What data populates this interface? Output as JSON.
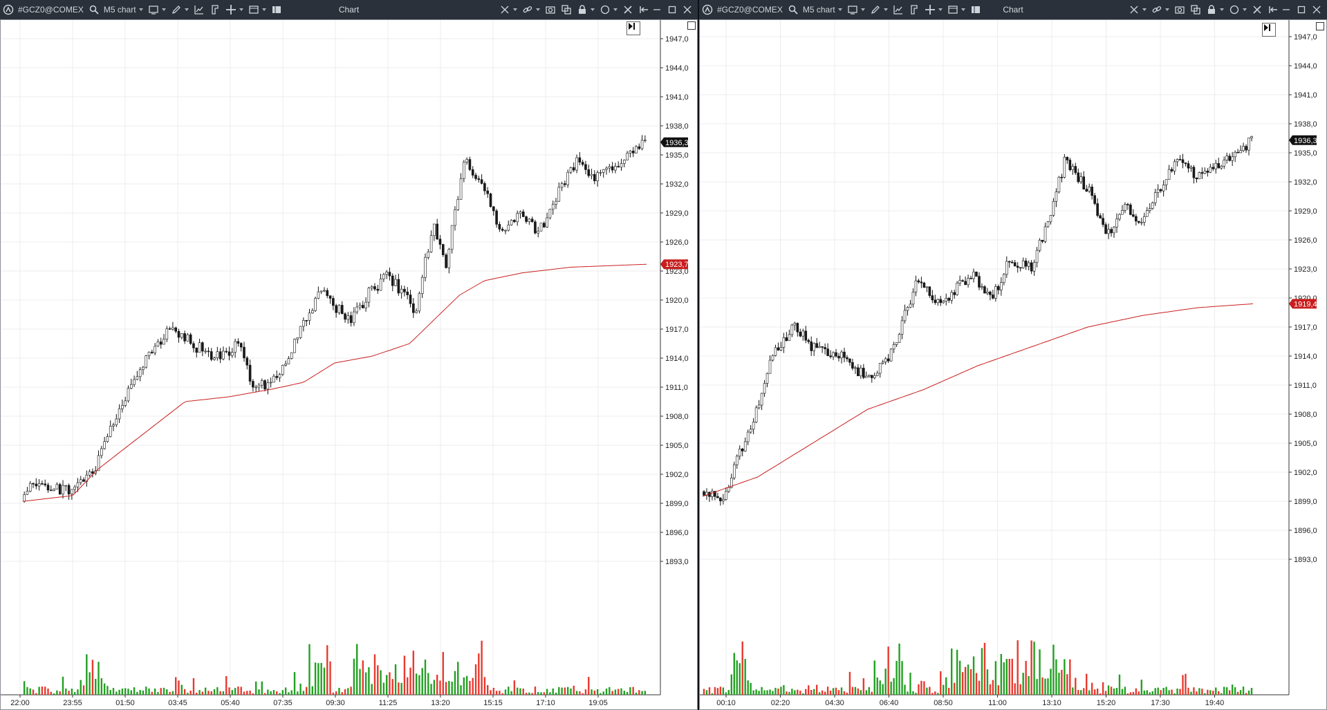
{
  "panels": [
    {
      "id": "left",
      "symbol": "#GCZ0@COMEX",
      "timeframe": "M5 chart",
      "title": "Chart",
      "price_labels": [
        "1947,0",
        "1944,0",
        "1941,0",
        "1938,0",
        "1935,0",
        "1932,0",
        "1929,0",
        "1926,0",
        "1923,0",
        "1920,0",
        "1917,0",
        "1914,0",
        "1911,0",
        "1908,0",
        "1905,0",
        "1902,0",
        "1899,0",
        "1896,0",
        "1893,0"
      ],
      "time_labels": [
        "22:00",
        "23:55",
        "01:50",
        "03:45",
        "05:40",
        "07:35",
        "09:30",
        "11:25",
        "13:20",
        "15:15",
        "17:10",
        "19:05"
      ],
      "last_price": "1936,3",
      "vwap_label": "1923,7"
    },
    {
      "id": "right",
      "symbol": "#GCZ0@COMEX",
      "timeframe": "M5 chart",
      "title": "Chart",
      "price_labels": [
        "1947,0",
        "1944,0",
        "1941,0",
        "1938,0",
        "1935,0",
        "1932,0",
        "1929,0",
        "1926,0",
        "1923,0",
        "1920,0",
        "1917,0",
        "1914,0",
        "1911,0",
        "1908,0",
        "1905,0",
        "1902,0",
        "1899,0",
        "1896,0",
        "1893,0"
      ],
      "time_labels": [
        "00:10",
        "02:20",
        "04:30",
        "06:40",
        "08:50",
        "11:00",
        "13:10",
        "15:20",
        "17:30",
        "19:40"
      ],
      "last_price": "1936,3",
      "vwap_label": "1919,4"
    }
  ],
  "chart_data": [
    {
      "type": "candlestick",
      "symbol": "#GCZ0@COMEX",
      "timeframe": "M5",
      "ylim": [
        1892,
        1948
      ],
      "x_ticks": [
        "22:00",
        "23:55",
        "01:50",
        "03:45",
        "05:40",
        "07:35",
        "09:30",
        "11:25",
        "13:20",
        "15:15",
        "17:10",
        "19:05"
      ],
      "close_path": [
        [
          0,
          1899.2
        ],
        [
          0.02,
          1901.0
        ],
        [
          0.05,
          1900.4
        ],
        [
          0.09,
          1900.5
        ],
        [
          0.12,
          1903.0
        ],
        [
          0.16,
          1909.0
        ],
        [
          0.21,
          1915.0
        ],
        [
          0.24,
          1917.2
        ],
        [
          0.28,
          1915.2
        ],
        [
          0.32,
          1914.0
        ],
        [
          0.35,
          1915.5
        ],
        [
          0.37,
          1911.5
        ],
        [
          0.4,
          1911.0
        ],
        [
          0.43,
          1914.5
        ],
        [
          0.46,
          1918.5
        ],
        [
          0.48,
          1921.5
        ],
        [
          0.5,
          1919.5
        ],
        [
          0.53,
          1918.0
        ],
        [
          0.56,
          1921.0
        ],
        [
          0.59,
          1922.5
        ],
        [
          0.62,
          1920.0
        ],
        [
          0.63,
          1918.0
        ],
        [
          0.66,
          1928.0
        ],
        [
          0.68,
          1923.5
        ],
        [
          0.71,
          1934.5
        ],
        [
          0.74,
          1932.0
        ],
        [
          0.77,
          1926.5
        ],
        [
          0.8,
          1929.0
        ],
        [
          0.83,
          1927.0
        ],
        [
          0.86,
          1931.0
        ],
        [
          0.89,
          1934.5
        ],
        [
          0.91,
          1932.5
        ],
        [
          0.95,
          1933.5
        ],
        [
          0.97,
          1935.0
        ],
        [
          1.0,
          1936.3
        ]
      ],
      "vwap_path": [
        [
          0,
          1899.2
        ],
        [
          0.08,
          1899.8
        ],
        [
          0.12,
          1902.5
        ],
        [
          0.2,
          1906.5
        ],
        [
          0.26,
          1909.5
        ],
        [
          0.33,
          1910.0
        ],
        [
          0.4,
          1910.8
        ],
        [
          0.45,
          1911.5
        ],
        [
          0.5,
          1913.5
        ],
        [
          0.56,
          1914.2
        ],
        [
          0.62,
          1915.5
        ],
        [
          0.66,
          1918.0
        ],
        [
          0.7,
          1920.5
        ],
        [
          0.74,
          1922.0
        ],
        [
          0.8,
          1922.8
        ],
        [
          0.88,
          1923.4
        ],
        [
          1.0,
          1923.7
        ]
      ],
      "volume_profile": "spikes around 01:50 and 13:20-15:15",
      "last_price": 1936.3,
      "vwap_last": 1923.7
    },
    {
      "type": "candlestick",
      "symbol": "#GCZ0@COMEX",
      "timeframe": "M5",
      "ylim": [
        1892,
        1948
      ],
      "x_ticks": [
        "00:10",
        "02:20",
        "04:30",
        "06:40",
        "08:50",
        "11:00",
        "13:10",
        "15:20",
        "17:30",
        "19:40"
      ],
      "close_path": [
        [
          0,
          1900.0
        ],
        [
          0.04,
          1899.5
        ],
        [
          0.06,
          1902.5
        ],
        [
          0.09,
          1906.5
        ],
        [
          0.13,
          1914.5
        ],
        [
          0.17,
          1917.0
        ],
        [
          0.21,
          1914.5
        ],
        [
          0.26,
          1914.2
        ],
        [
          0.3,
          1911.5
        ],
        [
          0.34,
          1913.5
        ],
        [
          0.39,
          1921.5
        ],
        [
          0.44,
          1919.5
        ],
        [
          0.49,
          1922.5
        ],
        [
          0.53,
          1920.0
        ],
        [
          0.56,
          1924.0
        ],
        [
          0.6,
          1923.0
        ],
        [
          0.63,
          1928.0
        ],
        [
          0.66,
          1934.0
        ],
        [
          0.7,
          1931.5
        ],
        [
          0.74,
          1926.5
        ],
        [
          0.77,
          1930.0
        ],
        [
          0.8,
          1927.5
        ],
        [
          0.83,
          1931.0
        ],
        [
          0.87,
          1934.5
        ],
        [
          0.9,
          1932.5
        ],
        [
          0.94,
          1933.5
        ],
        [
          0.97,
          1935.0
        ],
        [
          1.0,
          1936.3
        ]
      ],
      "vwap_path": [
        [
          0,
          1899.5
        ],
        [
          0.1,
          1901.5
        ],
        [
          0.2,
          1905.0
        ],
        [
          0.3,
          1908.5
        ],
        [
          0.4,
          1910.5
        ],
        [
          0.5,
          1913.0
        ],
        [
          0.6,
          1915.0
        ],
        [
          0.7,
          1917.0
        ],
        [
          0.8,
          1918.2
        ],
        [
          0.9,
          1919.0
        ],
        [
          1.0,
          1919.4
        ]
      ],
      "volume_profile": "spikes around 02:20 and 13:10-15:20",
      "last_price": 1936.3,
      "vwap_last": 1919.4
    }
  ]
}
